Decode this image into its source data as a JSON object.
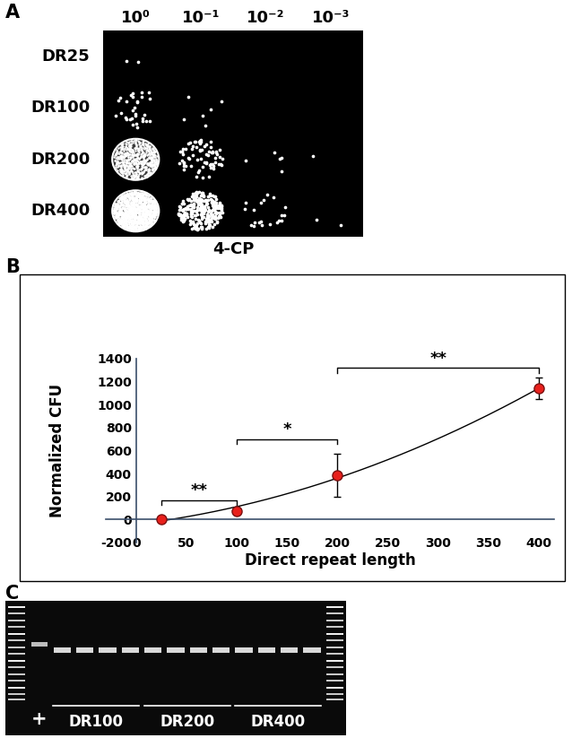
{
  "panel_a": {
    "label": "A",
    "columns": [
      "10⁰",
      "10⁻¹",
      "10⁻²",
      "10⁻³"
    ],
    "rows": [
      "DR25",
      "DR100",
      "DR200",
      "DR400"
    ],
    "caption": "4-CP"
  },
  "chart_data": {
    "label": "B",
    "type": "scatter",
    "xlabel": "Direct repeat length",
    "ylabel": "Normalized CFU",
    "x": [
      25,
      100,
      200,
      400
    ],
    "values": [
      5,
      75,
      385,
      1140
    ],
    "error": [
      5,
      15,
      190,
      95
    ],
    "color": "#e8201c",
    "marker": "o",
    "xlim": [
      -30,
      415
    ],
    "xticks": [
      0,
      50,
      100,
      150,
      200,
      250,
      300,
      350,
      400
    ],
    "ylim": [
      -200,
      1400
    ],
    "yticks": [
      -200,
      0,
      200,
      400,
      600,
      800,
      1000,
      1200,
      1400
    ],
    "grid": false,
    "annotations": [
      {
        "x": [
          25,
          100
        ],
        "y": 170,
        "label": "**"
      },
      {
        "x": [
          100,
          200
        ],
        "y": 700,
        "label": "*"
      },
      {
        "x": [
          200,
          400
        ],
        "y": 1320,
        "label": "**"
      }
    ]
  },
  "panel_c": {
    "label": "C",
    "lanes": [
      "+",
      "DR100",
      "DR200",
      "DR400"
    ]
  }
}
